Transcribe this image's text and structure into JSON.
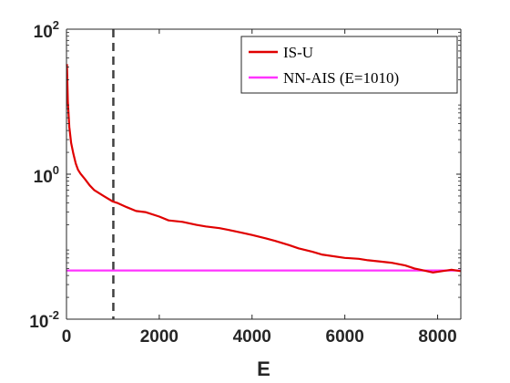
{
  "chart_data": {
    "type": "line",
    "title": "",
    "xlabel": "E",
    "ylabel": "",
    "xlim": [
      0,
      8500
    ],
    "ylim": [
      0.01,
      100
    ],
    "yscale": "log",
    "x_ticks": [
      0,
      2000,
      4000,
      6000,
      8000
    ],
    "x_tick_labels": [
      "0",
      "2000",
      "4000",
      "6000",
      "8000"
    ],
    "y_ticks": [
      0.01,
      1,
      100
    ],
    "y_tick_labels": [
      {
        "base": "10",
        "exp": "-2"
      },
      {
        "base": "10",
        "exp": "0"
      },
      {
        "base": "10",
        "exp": "2"
      }
    ],
    "grid": false,
    "legend_position": "top-right",
    "vertical_reference_line": {
      "x": 1010,
      "style": "dashed",
      "color": "#404040"
    },
    "series": [
      {
        "name": "IS-U",
        "color": "#e00000",
        "x": [
          10,
          30,
          60,
          100,
          150,
          200,
          250,
          300,
          400,
          500,
          600,
          800,
          1000,
          1100,
          1300,
          1500,
          1700,
          2000,
          2200,
          2500,
          2800,
          3000,
          3300,
          3500,
          3800,
          4000,
          4300,
          4500,
          4800,
          5000,
          5300,
          5500,
          6000,
          6300,
          6500,
          6800,
          7000,
          7300,
          7500,
          7700,
          7900,
          8100,
          8300,
          8500
        ],
        "y": [
          33,
          10,
          4.5,
          2.7,
          1.9,
          1.4,
          1.15,
          1.02,
          0.85,
          0.7,
          0.6,
          0.5,
          0.42,
          0.4,
          0.35,
          0.31,
          0.3,
          0.26,
          0.23,
          0.22,
          0.2,
          0.19,
          0.18,
          0.17,
          0.155,
          0.145,
          0.13,
          0.12,
          0.105,
          0.095,
          0.085,
          0.078,
          0.07,
          0.068,
          0.065,
          0.062,
          0.06,
          0.055,
          0.05,
          0.047,
          0.044,
          0.046,
          0.048,
          0.046
        ]
      },
      {
        "name": "NN-AIS (E=1010)",
        "color": "#ff33ff",
        "x": [
          0,
          8500
        ],
        "y": [
          0.047,
          0.047
        ]
      }
    ]
  }
}
